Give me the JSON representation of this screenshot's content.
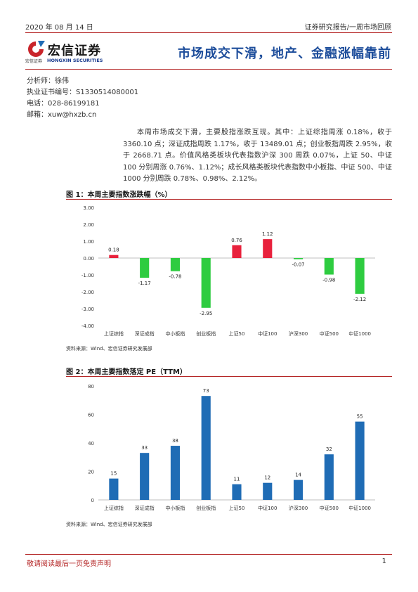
{
  "header": {
    "date": "2020 年 08 月 14 日",
    "category": "证券研究报告/一周市场回顾"
  },
  "logo": {
    "name_cn": "宏信证券",
    "sub_cn": "宏信证券",
    "sub_en": "HONGXIN SECURITIES"
  },
  "report_title": "市场成交下滑，地产、金融涨幅靠前",
  "author": {
    "analyst": "分析师：徐伟",
    "license": "执业证书编号：S1330514080001",
    "phone": "电话：028-86199181",
    "email": "邮箱：xuw@hxzb.cn"
  },
  "summary": "本周市场成交下滑，主要股指涨跌互现。其中：上证综指周涨 0.18%，收于 3360.10 点；深证成指周跌 1.17%，收于 13489.01 点；创业板指周跌 2.95%，收于 2668.71 点。价值风格类板块代表指数沪深 300 周跌 0.07%，上证 50、中证 100 分别周涨 0.76%、1.12%；成长风格类板块代表指数中小板指、中证 500、中证 1000 分别周跌 0.78%、0.98%、2.12%。",
  "figures": [
    {
      "title": "图 1：本周主要指数涨跌幅（%）",
      "source": "资料来源：Wind、宏信证券研究发展部"
    },
    {
      "title": "图 2：本周主要指数落定 PE（TTM）",
      "source": "资料来源：Wind、宏信证券研究发展部"
    }
  ],
  "chart_data": [
    {
      "type": "bar",
      "categories": [
        "上证综指",
        "深证成指",
        "中小板指",
        "创业板指",
        "上证50",
        "中证100",
        "沪深300",
        "中证500",
        "中证1000"
      ],
      "values": [
        0.18,
        -1.17,
        -0.78,
        -2.95,
        0.76,
        1.12,
        -0.07,
        -0.98,
        -2.12
      ],
      "data_labels": [
        "0.18",
        "-1.17",
        "-0.78",
        "-2.95",
        "0.76",
        "1.12",
        "-0.07",
        "-0.98",
        "-2.12"
      ],
      "y_ticks": [
        "3.00",
        "2.00",
        "1.00",
        "0.00",
        "-1.00",
        "-2.00",
        "-3.00",
        "-4.00"
      ],
      "ylim": [
        -4,
        3
      ],
      "colors": {
        "positive": "#e8213c",
        "negative": "#2ecc40"
      },
      "grid": false
    },
    {
      "type": "bar",
      "categories": [
        "上证综指",
        "深证成指",
        "中小板指",
        "创业板指",
        "上证50",
        "中证100",
        "沪深300",
        "中证500",
        "中证1000"
      ],
      "values": [
        15,
        33,
        38,
        73,
        11,
        12,
        14,
        32,
        55
      ],
      "data_labels": [
        "15",
        "33",
        "38",
        "73",
        "11",
        "12",
        "14",
        "32",
        "55"
      ],
      "y_ticks": [
        "80",
        "60",
        "40",
        "20",
        "0"
      ],
      "ylim": [
        0,
        80
      ],
      "colors": {
        "bar": "#1f6cb5"
      },
      "grid": false
    }
  ],
  "footer": {
    "disclaimer": "敬请阅读最后一页免责声明",
    "page": "1"
  }
}
